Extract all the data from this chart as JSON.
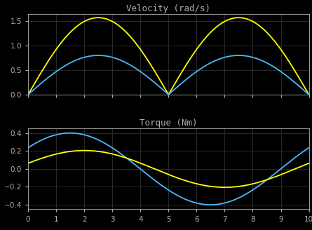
{
  "title1": "Velocity (rad/s)",
  "title2": "Torque (Nm)",
  "xlim": [
    0,
    10
  ],
  "ylim1": [
    0,
    1.65
  ],
  "ylim2": [
    -0.45,
    0.45
  ],
  "yticks1": [
    0,
    0.5,
    1.0,
    1.5
  ],
  "yticks2": [
    -0.4,
    -0.2,
    0.0,
    0.2,
    0.4
  ],
  "xticks": [
    0,
    1,
    2,
    3,
    4,
    5,
    6,
    7,
    8,
    9,
    10
  ],
  "bg_color": "#000000",
  "yellow": "#ffff00",
  "blue": "#4db8ff",
  "grid_color": "#3a3a3a",
  "text_color": "#b0b0b0",
  "vel_yellow_amp": 1.571,
  "vel_blue_amp": 0.8,
  "torque_blue_amp": 0.4,
  "torque_yellow_amp": 0.205,
  "period": 10.0,
  "torque_period": 10.0,
  "n_points": 2000
}
